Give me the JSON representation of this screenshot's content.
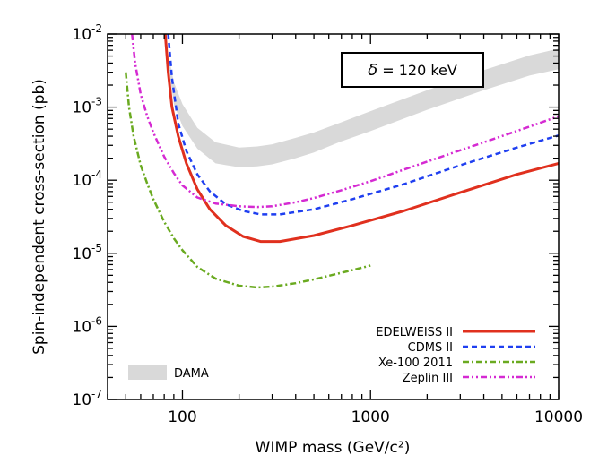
{
  "chart_data": {
    "type": "line",
    "xlabel": "WIMP mass (GeV/c²)",
    "ylabel": "Spin-independent cross-section (pb)",
    "xscale": "log",
    "yscale": "log",
    "xlim": [
      40,
      10000
    ],
    "ylim": [
      1e-07,
      0.01
    ],
    "x_ticks": [
      {
        "value": 100,
        "label": "100"
      },
      {
        "value": 1000,
        "label": "1000"
      },
      {
        "value": 10000,
        "label": "10000"
      }
    ],
    "y_ticks": [
      {
        "value": 0.01,
        "mant": "10",
        "exp": "-2"
      },
      {
        "value": 0.001,
        "mant": "10",
        "exp": "-3"
      },
      {
        "value": 0.0001,
        "mant": "10",
        "exp": "-4"
      },
      {
        "value": 1e-05,
        "mant": "10",
        "exp": "-5"
      },
      {
        "value": 1e-06,
        "mant": "10",
        "exp": "-6"
      },
      {
        "value": 1e-07,
        "mant": "10",
        "exp": "-7"
      }
    ],
    "annotation": {
      "symbol": "δ",
      "text": " = 120 keV"
    },
    "legend_position": "bottom-right",
    "series": [
      {
        "name": "EDELWEISS II",
        "color": "#e0301e",
        "style": "solid",
        "x": [
          81,
          84,
          88,
          95,
          105,
          120,
          140,
          170,
          210,
          260,
          330,
          500,
          800,
          1500,
          3000,
          6000,
          10000
        ],
        "y": [
          0.01,
          0.003,
          0.001,
          0.0004,
          0.00017,
          7.5e-05,
          4e-05,
          2.4e-05,
          1.7e-05,
          1.45e-05,
          1.45e-05,
          1.75e-05,
          2.4e-05,
          3.8e-05,
          6.8e-05,
          0.00012,
          0.00017
        ]
      },
      {
        "name": "CDMS II",
        "color": "#1f3ff0",
        "style": "dashed",
        "x": [
          84,
          88,
          95,
          105,
          120,
          140,
          170,
          210,
          260,
          330,
          500,
          800,
          1500,
          3000,
          6000,
          10000
        ],
        "y": [
          0.01,
          0.0025,
          0.0006,
          0.00025,
          0.00012,
          7e-05,
          4.7e-05,
          3.8e-05,
          3.4e-05,
          3.4e-05,
          4e-05,
          5.5e-05,
          8.8e-05,
          0.00016,
          0.00028,
          0.00041
        ]
      },
      {
        "name": "Xe-100 2011",
        "color": "#6aaa20",
        "style": "dashdot",
        "x": [
          50,
          52,
          55,
          60,
          65,
          70,
          80,
          90,
          100,
          120,
          150,
          200,
          250,
          300,
          400,
          500,
          700,
          1000
        ],
        "y": [
          0.003,
          0.001,
          0.0004,
          0.00016,
          9e-05,
          5.5e-05,
          2.7e-05,
          1.6e-05,
          1.1e-05,
          6.5e-06,
          4.5e-06,
          3.6e-06,
          3.4e-06,
          3.5e-06,
          3.9e-06,
          4.4e-06,
          5.4e-06,
          6.8e-06
        ]
      },
      {
        "name": "Zeplin III",
        "color": "#d52ad2",
        "style": "dashdotdot",
        "x": [
          54,
          56,
          60,
          65,
          70,
          80,
          90,
          100,
          120,
          150,
          200,
          250,
          300,
          400,
          500,
          700,
          1000,
          2000,
          4000,
          7000,
          10000
        ],
        "y": [
          0.01,
          0.004,
          0.0015,
          0.00075,
          0.00045,
          0.00021,
          0.000125,
          8.5e-05,
          5.8e-05,
          4.8e-05,
          4.4e-05,
          4.3e-05,
          4.4e-05,
          5e-05,
          5.7e-05,
          7.3e-05,
          9.7e-05,
          0.00018,
          0.00033,
          0.00054,
          0.00075
        ]
      }
    ],
    "band": {
      "name": "DAMA",
      "color": "#d9d9d9",
      "x": [
        80,
        90,
        100,
        120,
        150,
        200,
        250,
        300,
        400,
        500,
        700,
        1000,
        2000,
        4000,
        7000,
        10000
      ],
      "upper": [
        0.01,
        0.0022,
        0.0011,
        0.00052,
        0.00033,
        0.00028,
        0.00029,
        0.00031,
        0.00038,
        0.00045,
        0.00062,
        0.00088,
        0.0017,
        0.0032,
        0.0051,
        0.0063
      ],
      "lower": [
        0.01,
        0.0011,
        0.00055,
        0.00027,
        0.00017,
        0.00015,
        0.000155,
        0.000165,
        0.0002,
        0.00024,
        0.00034,
        0.00047,
        0.00092,
        0.0017,
        0.0027,
        0.0033
      ]
    }
  }
}
